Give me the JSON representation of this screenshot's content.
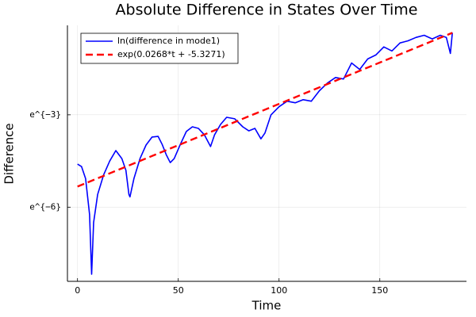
{
  "chart_data": {
    "type": "line",
    "title": "Absolute Difference in States Over Time",
    "x_label": "Time",
    "y_label": "Difference",
    "xlim": [
      -5,
      193
    ],
    "xticks": [
      0,
      50,
      100,
      150
    ],
    "ylim": [
      -8.4,
      -0.1
    ],
    "yticks": [
      {
        "value": -6,
        "label": "e^{−6}"
      },
      {
        "value": -3,
        "label": "e^{−3}"
      }
    ],
    "grid": true,
    "legend": "top-left",
    "series": [
      {
        "name": "ln(difference in mode1)",
        "color": "#0000ff",
        "dash": false,
        "x": [
          0,
          2,
          4,
          6,
          7,
          8,
          10,
          13,
          16,
          19,
          22,
          24,
          25.5,
          26,
          28,
          31,
          34,
          37,
          40,
          42,
          44,
          46,
          48,
          51,
          54,
          57,
          60,
          63,
          66,
          68,
          71,
          74,
          78,
          82,
          85,
          88,
          91,
          93,
          96,
          100,
          104,
          108,
          112,
          116,
          120,
          124,
          128,
          132,
          136,
          140,
          144,
          148,
          152,
          156,
          160,
          164,
          168,
          172,
          176,
          180,
          183,
          185,
          186
        ],
        "values": [
          -4.6,
          -4.68,
          -5.07,
          -6.23,
          -8.17,
          -6.49,
          -5.58,
          -4.94,
          -4.5,
          -4.16,
          -4.42,
          -4.8,
          -5.58,
          -5.66,
          -5.07,
          -4.42,
          -3.98,
          -3.72,
          -3.7,
          -3.96,
          -4.29,
          -4.55,
          -4.42,
          -3.96,
          -3.54,
          -3.39,
          -3.44,
          -3.65,
          -4.03,
          -3.65,
          -3.31,
          -3.08,
          -3.13,
          -3.39,
          -3.52,
          -3.44,
          -3.78,
          -3.59,
          -3,
          -2.74,
          -2.56,
          -2.61,
          -2.51,
          -2.56,
          -2.22,
          -1.97,
          -1.79,
          -1.84,
          -1.32,
          -1.53,
          -1.19,
          -1.06,
          -0.8,
          -0.93,
          -0.67,
          -0.6,
          -0.49,
          -0.42,
          -0.54,
          -0.42,
          -0.49,
          -1.01,
          -0.34
        ]
      },
      {
        "name": "exp(0.0268*t + -5.3271)",
        "color": "#ff0000",
        "dash": true,
        "x": [
          0,
          186
        ],
        "values": [
          -5.327,
          -0.342
        ]
      }
    ]
  }
}
